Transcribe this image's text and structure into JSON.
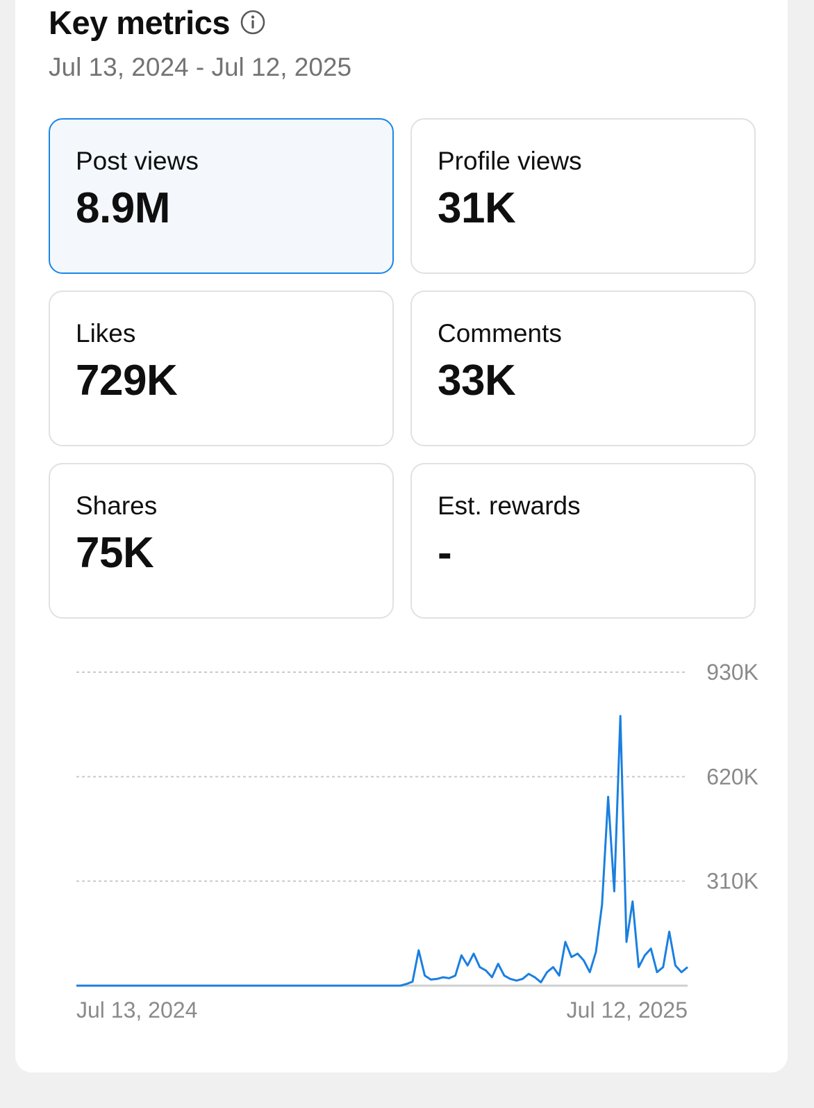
{
  "header": {
    "title": "Key metrics",
    "date_range": "Jul 13, 2024 - Jul 12, 2025"
  },
  "metrics": [
    {
      "label": "Post views",
      "value": "8.9M"
    },
    {
      "label": "Profile views",
      "value": "31K"
    },
    {
      "label": "Likes",
      "value": "729K"
    },
    {
      "label": "Comments",
      "value": "33K"
    },
    {
      "label": "Shares",
      "value": "75K"
    },
    {
      "label": "Est. rewards",
      "value": "-"
    }
  ],
  "colors": {
    "accent": "#1a86e4",
    "selected_bg": "#f4f8fd",
    "line": "#1a7fe0",
    "muted_text": "#737373"
  },
  "chart_data": {
    "type": "line",
    "title": "Post views",
    "x_start_label": "Jul 13, 2024",
    "x_end_label": "Jul 12, 2025",
    "y_ticks": [
      "930K",
      "620K",
      "310K"
    ],
    "ylim": [
      0,
      930000
    ],
    "series": [
      {
        "name": "Post views",
        "x": [
          0,
          1,
          2,
          3,
          4,
          5,
          6,
          7,
          8,
          9,
          10,
          11,
          12,
          13,
          14,
          15,
          16,
          17,
          18,
          19,
          20,
          21,
          22,
          23,
          24,
          25,
          26,
          27,
          28,
          29,
          30,
          31,
          32,
          33,
          34,
          35,
          36,
          37,
          38,
          39,
          40,
          41,
          42,
          43,
          44,
          45,
          46,
          47,
          48,
          49,
          50,
          51,
          52,
          53,
          54,
          55,
          56,
          57,
          58,
          59,
          60,
          61,
          62,
          63,
          64,
          65,
          66,
          67,
          68,
          69,
          70,
          71,
          72,
          73,
          74,
          75,
          76,
          77,
          78,
          79,
          80,
          81,
          82,
          83,
          84,
          85,
          86,
          87,
          88,
          89,
          90,
          91,
          92,
          93,
          94,
          95,
          96,
          97,
          98,
          99,
          100
        ],
        "values": [
          0,
          0,
          0,
          0,
          0,
          0,
          0,
          0,
          0,
          0,
          0,
          0,
          0,
          0,
          0,
          0,
          0,
          0,
          0,
          0,
          0,
          0,
          0,
          0,
          0,
          0,
          0,
          0,
          0,
          0,
          0,
          0,
          0,
          0,
          0,
          0,
          0,
          0,
          0,
          0,
          0,
          0,
          0,
          0,
          0,
          0,
          0,
          0,
          0,
          0,
          0,
          0,
          0,
          0,
          5000,
          12000,
          105000,
          30000,
          18000,
          20000,
          25000,
          22000,
          30000,
          90000,
          60000,
          95000,
          55000,
          45000,
          25000,
          65000,
          30000,
          20000,
          15000,
          20000,
          35000,
          25000,
          10000,
          40000,
          55000,
          30000,
          130000,
          85000,
          95000,
          75000,
          40000,
          100000,
          240000,
          560000,
          280000,
          800000,
          130000,
          250000,
          55000,
          90000,
          110000,
          40000,
          55000,
          160000,
          60000,
          40000,
          55000
        ]
      }
    ]
  }
}
